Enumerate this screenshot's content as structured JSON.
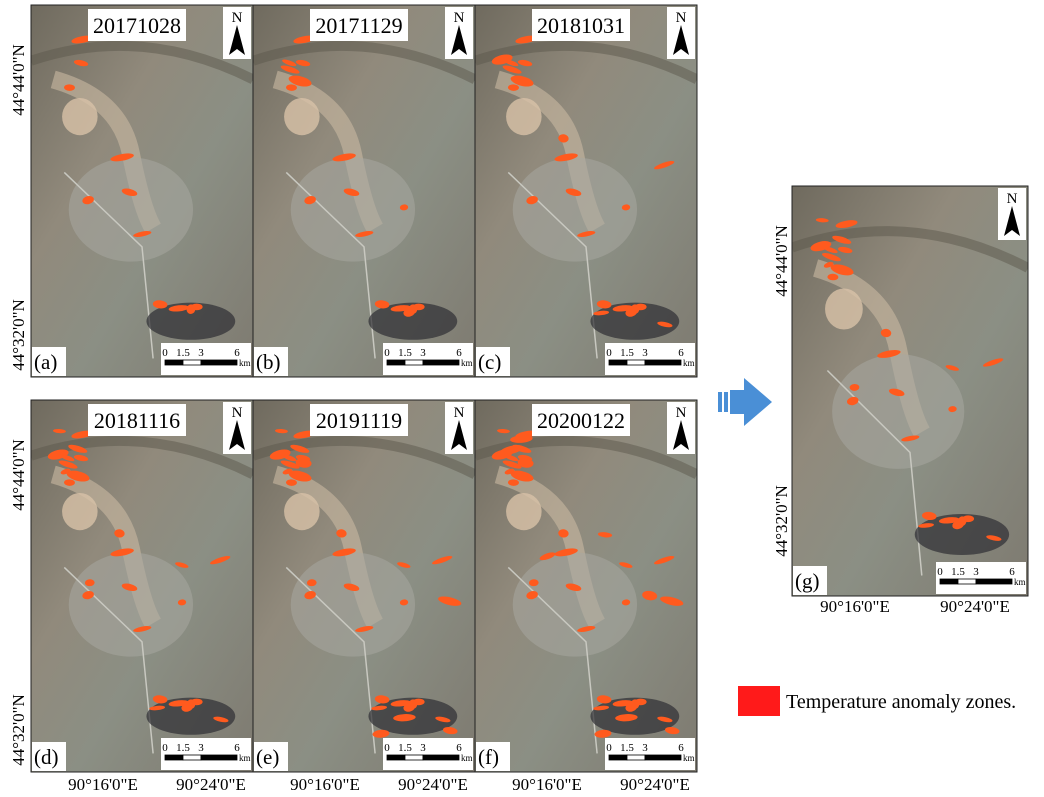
{
  "panels": [
    {
      "date": "20171028",
      "letter": "(a)"
    },
    {
      "date": "20171129",
      "letter": "(b)"
    },
    {
      "date": "20181031",
      "letter": "(c)"
    },
    {
      "date": "20181116",
      "letter": "(d)"
    },
    {
      "date": "20191119",
      "letter": "(e)"
    },
    {
      "date": "20200122",
      "letter": "(f)"
    }
  ],
  "summary_panel": {
    "letter": "(g)"
  },
  "lat_labels": [
    "44°44'0\"N",
    "44°32'0\"N"
  ],
  "lon_labels": [
    "90°16'0\"E",
    "90°24'0\"E"
  ],
  "north": "N",
  "scale_ticks": [
    0,
    1.5,
    3,
    6
  ],
  "scale_unit": "km",
  "legend": "Temperature anomaly zones."
}
